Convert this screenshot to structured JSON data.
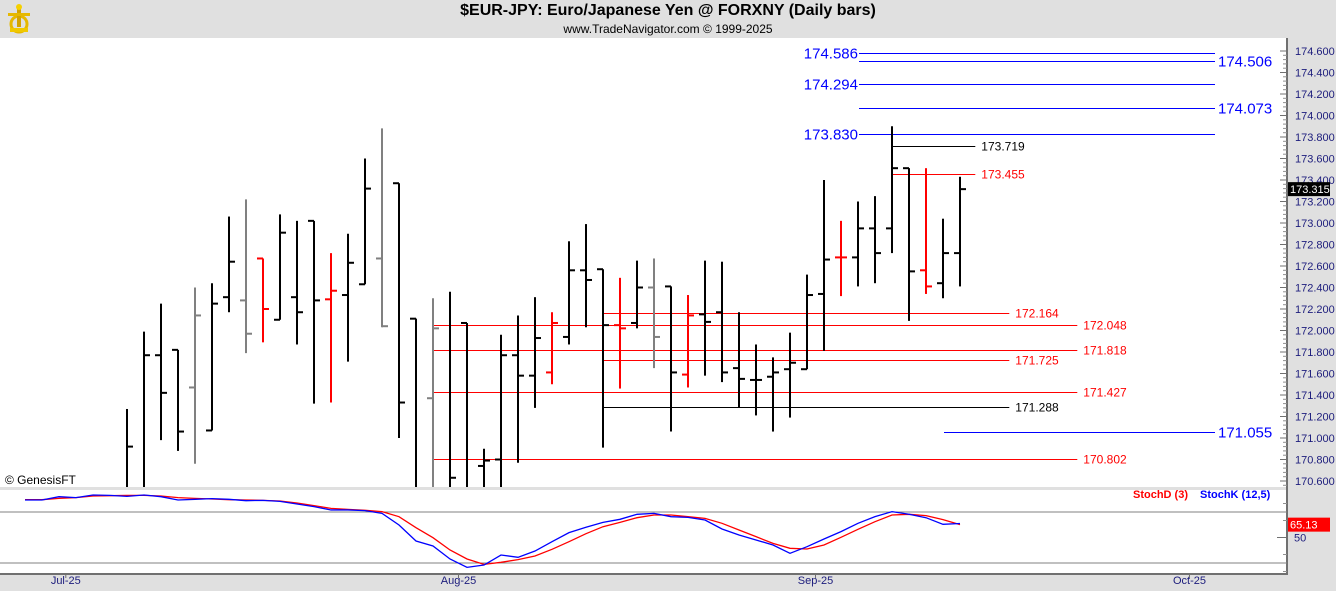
{
  "header": {
    "title": "$EUR-JPY:  Euro/Japanese Yen @ FORXNY  (Daily bars)",
    "subtitle": "www.TradeNavigator.com © 1999-2025",
    "logo": "sextant-logo"
  },
  "copyright": "© GenesisFT",
  "colors": {
    "up": "#000000",
    "down": "#ff0000",
    "neutral": "#808080",
    "blue_level": "#0000ff",
    "red_level": "#ff0000",
    "black_level": "#000000",
    "axis_text": "#1c1c7c",
    "stoch_d": "#ff0000",
    "stoch_k": "#0000ff"
  },
  "chart_data": [
    {
      "type": "ohlc",
      "title": "$EUR-JPY Daily bars",
      "ylim": [
        170.6,
        174.7
      ],
      "yticks": [
        "174.600",
        "174.400",
        "174.200",
        "174.000",
        "173.800",
        "173.600",
        "173.400",
        "173.200",
        "173.000",
        "172.800",
        "172.600",
        "172.400",
        "172.200",
        "172.000",
        "171.800",
        "171.600",
        "171.400",
        "171.200",
        "171.000",
        "170.800",
        "170.600"
      ],
      "last_price": "173.315",
      "xticks": [
        {
          "label": "Jul-25",
          "bar": -3.6
        },
        {
          "label": "Aug-25",
          "bar": 19.5
        },
        {
          "label": "Sep-25",
          "bar": 40.5
        },
        {
          "label": "Oct-25",
          "bar": 62.5
        }
      ],
      "bars": [
        {
          "o": 170.5,
          "h": 171.27,
          "l": 170.4,
          "c": 170.92,
          "col": "up"
        },
        {
          "o": 170.5,
          "h": 171.99,
          "l": 170.4,
          "c": 171.77,
          "col": "up"
        },
        {
          "o": 171.77,
          "h": 172.25,
          "l": 170.98,
          "c": 171.42,
          "col": "up"
        },
        {
          "o": 171.82,
          "h": 171.82,
          "l": 170.88,
          "c": 171.06,
          "col": "up"
        },
        {
          "o": 171.47,
          "h": 172.4,
          "l": 170.76,
          "c": 172.14,
          "col": "neutral"
        },
        {
          "o": 171.07,
          "h": 172.44,
          "l": 171.07,
          "c": 172.25,
          "col": "up"
        },
        {
          "o": 172.31,
          "h": 173.06,
          "l": 172.17,
          "c": 172.64,
          "col": "up"
        },
        {
          "o": 172.28,
          "h": 173.22,
          "l": 171.79,
          "c": 171.97,
          "col": "neutral"
        },
        {
          "o": 172.67,
          "h": 172.67,
          "l": 171.89,
          "c": 172.2,
          "col": "down"
        },
        {
          "o": 172.1,
          "h": 173.08,
          "l": 172.1,
          "c": 172.91,
          "col": "up"
        },
        {
          "o": 172.31,
          "h": 173.02,
          "l": 171.87,
          "c": 172.17,
          "col": "up"
        },
        {
          "o": 173.02,
          "h": 173.02,
          "l": 171.32,
          "c": 172.28,
          "col": "up"
        },
        {
          "o": 172.29,
          "h": 172.72,
          "l": 171.33,
          "c": 172.37,
          "col": "down"
        },
        {
          "o": 172.33,
          "h": 172.9,
          "l": 171.71,
          "c": 172.63,
          "col": "up"
        },
        {
          "o": 172.43,
          "h": 173.6,
          "l": 172.43,
          "c": 173.32,
          "col": "up"
        },
        {
          "o": 172.67,
          "h": 173.88,
          "l": 172.03,
          "c": 172.04,
          "col": "neutral"
        },
        {
          "o": 173.37,
          "h": 173.37,
          "l": 171.0,
          "c": 171.33,
          "col": "up"
        },
        {
          "o": 172.11,
          "h": 172.11,
          "l": 170.4,
          "c": 170.5,
          "col": "up"
        },
        {
          "o": 171.37,
          "h": 172.3,
          "l": 170.4,
          "c": 172.02,
          "col": "neutral"
        },
        {
          "o": 170.5,
          "h": 172.36,
          "l": 170.4,
          "c": 170.63,
          "col": "up"
        },
        {
          "o": 172.07,
          "h": 172.07,
          "l": 170.4,
          "c": 170.45,
          "col": "up"
        },
        {
          "o": 170.74,
          "h": 170.9,
          "l": 170.4,
          "c": 170.79,
          "col": "up"
        },
        {
          "o": 170.8,
          "h": 171.96,
          "l": 170.4,
          "c": 171.77,
          "col": "up"
        },
        {
          "o": 171.77,
          "h": 172.14,
          "l": 170.77,
          "c": 171.58,
          "col": "up"
        },
        {
          "o": 171.58,
          "h": 172.31,
          "l": 171.28,
          "c": 171.93,
          "col": "up"
        },
        {
          "o": 171.61,
          "h": 172.17,
          "l": 171.5,
          "c": 172.07,
          "col": "down"
        },
        {
          "o": 171.94,
          "h": 172.83,
          "l": 171.87,
          "c": 172.56,
          "col": "up"
        },
        {
          "o": 172.56,
          "h": 172.99,
          "l": 172.03,
          "c": 172.47,
          "col": "up"
        },
        {
          "o": 172.57,
          "h": 172.57,
          "l": 170.91,
          "c": 172.05,
          "col": "up"
        },
        {
          "o": 172.05,
          "h": 172.49,
          "l": 171.46,
          "c": 172.02,
          "col": "down"
        },
        {
          "o": 172.07,
          "h": 172.65,
          "l": 172.02,
          "c": 172.4,
          "col": "up"
        },
        {
          "o": 172.4,
          "h": 172.67,
          "l": 171.65,
          "c": 171.94,
          "col": "neutral"
        },
        {
          "o": 172.41,
          "h": 172.41,
          "l": 171.06,
          "c": 171.61,
          "col": "up"
        },
        {
          "o": 171.59,
          "h": 172.33,
          "l": 171.47,
          "c": 172.14,
          "col": "down"
        },
        {
          "o": 172.15,
          "h": 172.65,
          "l": 171.58,
          "c": 172.08,
          "col": "up"
        },
        {
          "o": 172.17,
          "h": 172.64,
          "l": 171.52,
          "c": 171.61,
          "col": "up"
        },
        {
          "o": 171.65,
          "h": 172.17,
          "l": 171.28,
          "c": 171.55,
          "col": "up"
        },
        {
          "o": 171.54,
          "h": 171.87,
          "l": 171.21,
          "c": 171.54,
          "col": "up"
        },
        {
          "o": 171.57,
          "h": 171.75,
          "l": 171.06,
          "c": 171.61,
          "col": "up"
        },
        {
          "o": 171.64,
          "h": 171.98,
          "l": 171.19,
          "c": 171.7,
          "col": "up"
        },
        {
          "o": 171.64,
          "h": 172.52,
          "l": 171.64,
          "c": 172.33,
          "col": "up"
        },
        {
          "o": 172.34,
          "h": 173.4,
          "l": 171.81,
          "c": 172.66,
          "col": "up"
        },
        {
          "o": 172.68,
          "h": 173.02,
          "l": 172.32,
          "c": 172.68,
          "col": "down"
        },
        {
          "o": 172.68,
          "h": 173.2,
          "l": 172.41,
          "c": 172.95,
          "col": "up"
        },
        {
          "o": 172.95,
          "h": 173.25,
          "l": 172.44,
          "c": 172.72,
          "col": "up"
        },
        {
          "o": 172.95,
          "h": 173.9,
          "l": 172.72,
          "c": 173.51,
          "col": "up"
        },
        {
          "o": 173.51,
          "h": 173.51,
          "l": 172.09,
          "c": 172.55,
          "col": "up"
        },
        {
          "o": 172.56,
          "h": 173.51,
          "l": 172.34,
          "c": 172.41,
          "col": "down"
        },
        {
          "o": 172.44,
          "h": 173.04,
          "l": 172.3,
          "c": 172.72,
          "col": "up"
        },
        {
          "o": 172.72,
          "h": 173.43,
          "l": 172.41,
          "c": 173.315,
          "col": "up"
        }
      ],
      "levels": [
        {
          "label": "174.586",
          "price": 174.586,
          "color": "blue",
          "from_bar": 43,
          "to_bar": 64,
          "label_side": "left"
        },
        {
          "label": "174.506",
          "price": 174.506,
          "color": "blue",
          "from_bar": 43,
          "to_bar": 64,
          "label_side": "right"
        },
        {
          "label": "174.294",
          "price": 174.294,
          "color": "blue",
          "from_bar": 43,
          "to_bar": 64,
          "label_side": "left"
        },
        {
          "label": "174.073",
          "price": 174.073,
          "color": "blue",
          "from_bar": 43,
          "to_bar": 64,
          "label_side": "right"
        },
        {
          "label": "173.830",
          "price": 173.83,
          "color": "blue",
          "from_bar": 43,
          "to_bar": 64,
          "label_side": "left"
        },
        {
          "label": "173.719",
          "price": 173.719,
          "color": "black",
          "from_bar": 45,
          "to_bar": 49.9,
          "label_side": "right"
        },
        {
          "label": "173.455",
          "price": 173.455,
          "color": "red",
          "from_bar": 45,
          "to_bar": 49.9,
          "label_side": "right"
        },
        {
          "label": "172.164",
          "price": 172.164,
          "color": "red",
          "from_bar": 28,
          "to_bar": 51.9,
          "label_side": "right"
        },
        {
          "label": "172.048",
          "price": 172.048,
          "color": "red",
          "from_bar": 18,
          "to_bar": 55.9,
          "label_side": "right"
        },
        {
          "label": "171.818",
          "price": 171.818,
          "color": "red",
          "from_bar": 18,
          "to_bar": 55.9,
          "label_side": "right"
        },
        {
          "label": "171.725",
          "price": 171.725,
          "color": "red",
          "from_bar": 28,
          "to_bar": 51.9,
          "label_side": "right"
        },
        {
          "label": "171.427",
          "price": 171.427,
          "color": "red",
          "from_bar": 18,
          "to_bar": 55.9,
          "label_side": "right"
        },
        {
          "label": "171.288",
          "price": 171.288,
          "color": "black",
          "from_bar": 28,
          "to_bar": 51.9,
          "label_side": "right"
        },
        {
          "label": "171.055",
          "price": 171.055,
          "color": "blue",
          "from_bar": 48,
          "to_bar": 64,
          "label_side": "right"
        },
        {
          "label": "170.802",
          "price": 170.802,
          "color": "red",
          "from_bar": 18,
          "to_bar": 55.9,
          "label_side": "right"
        }
      ]
    },
    {
      "type": "line",
      "title": "Stochastic",
      "ylim": [
        0,
        100
      ],
      "yticks": [
        "50"
      ],
      "reference_lines": [
        80,
        20
      ],
      "last_value": "65.13",
      "x_start_bar": -6,
      "series": [
        {
          "name": "StochD (3)",
          "color": "#ff0000",
          "values": [
            94.5,
            94.5,
            96,
            96.9,
            98.8,
            99.2,
            99.6,
            99.6,
            98.8,
            96.9,
            96,
            95.3,
            94.5,
            94.1,
            93.7,
            92.9,
            90.6,
            87.5,
            84.3,
            83.1,
            82,
            80.4,
            74.5,
            61.6,
            49.8,
            35.3,
            24.7,
            18.4,
            20.8,
            24,
            28.2,
            36.1,
            45.1,
            54.5,
            62.7,
            67.8,
            73.3,
            76.5,
            76.5,
            74.5,
            72.5,
            66.7,
            58.8,
            51,
            43.1,
            37.3,
            36.5,
            41.2,
            50.2,
            59.6,
            68.6,
            76.5,
            77.3,
            75.7,
            71,
            65.13
          ]
        },
        {
          "name": "StochK (12,5)",
          "color": "#0000ff",
          "values": [
            94.1,
            94.1,
            98,
            96.9,
            100,
            99.6,
            98.4,
            100,
            98,
            94.1,
            94.9,
            95.7,
            94.9,
            93.3,
            93.7,
            92.5,
            89.4,
            86.3,
            82.4,
            82.4,
            81.6,
            78.4,
            64.7,
            45.9,
            40,
            24.7,
            14.9,
            17.6,
            29.4,
            26.7,
            34.1,
            45.1,
            55.7,
            62,
            67.8,
            71.4,
            77.3,
            78.4,
            74.5,
            73.7,
            70.6,
            60,
            52.9,
            47.1,
            41.2,
            31.4,
            39.2,
            48.2,
            56.9,
            66.7,
            74.5,
            80.4,
            77.3,
            73.3,
            65.5,
            66.5
          ]
        }
      ]
    }
  ]
}
